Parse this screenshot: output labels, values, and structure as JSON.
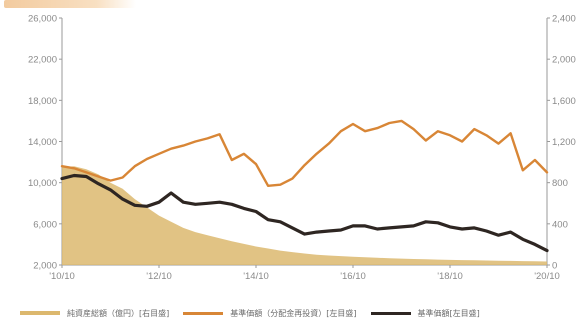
{
  "chart_data": {
    "type": "line",
    "x_ticks": [
      "'10/10",
      "'12/10",
      "'14/10",
      "'16/10",
      "'18/10",
      "'20/10"
    ],
    "y_left": {
      "range": [
        2000,
        26000
      ],
      "ticks": [
        "26,000",
        "22,000",
        "18,000",
        "14,000",
        "10,000",
        "6,000",
        "2,000"
      ],
      "tick_values": [
        26000,
        22000,
        18000,
        14000,
        10000,
        6000,
        2000
      ]
    },
    "y_right": {
      "range": [
        0,
        2400
      ],
      "ticks": [
        "2,400",
        "2,000",
        "1,600",
        "1,200",
        "800",
        "400",
        "0"
      ],
      "tick_values": [
        2400,
        2000,
        1600,
        1200,
        800,
        400,
        0
      ]
    },
    "x": [
      2010.75,
      2011.0,
      2011.25,
      2011.5,
      2011.75,
      2012.0,
      2012.25,
      2012.5,
      2012.75,
      2013.0,
      2013.25,
      2013.5,
      2013.75,
      2014.0,
      2014.25,
      2014.5,
      2014.75,
      2015.0,
      2015.25,
      2015.5,
      2015.75,
      2016.0,
      2016.25,
      2016.5,
      2016.75,
      2017.0,
      2017.25,
      2017.5,
      2017.75,
      2018.0,
      2018.25,
      2018.5,
      2018.75,
      2019.0,
      2019.25,
      2019.5,
      2019.75,
      2020.0,
      2020.25,
      2020.5,
      2020.75
    ],
    "series": [
      {
        "name": "純資産総額（億円）[右目盛]",
        "kind": "area",
        "axis": "right",
        "color": "#dcb86e",
        "values": [
          950,
          960,
          930,
          880,
          800,
          740,
          640,
          560,
          480,
          420,
          360,
          320,
          290,
          260,
          230,
          205,
          180,
          160,
          140,
          125,
          112,
          100,
          92,
          86,
          80,
          75,
          70,
          66,
          62,
          58,
          55,
          52,
          50,
          48,
          46,
          44,
          42,
          40,
          38,
          36,
          34
        ]
      },
      {
        "name": "基準価額（分配金再投資）[左目盛]",
        "kind": "line",
        "axis": "left",
        "color": "#d88636",
        "values": [
          11600,
          11400,
          11000,
          10600,
          10200,
          10500,
          11600,
          12300,
          12800,
          13300,
          13600,
          14000,
          14300,
          14700,
          12200,
          12800,
          11800,
          9700,
          9800,
          10400,
          11700,
          12800,
          13800,
          15000,
          15700,
          15000,
          15300,
          15800,
          16000,
          15200,
          14100,
          15000,
          14600,
          14000,
          15200,
          14600,
          13800,
          14800,
          11200,
          12200,
          11000
        ]
      },
      {
        "name": "基準価額[左目盛]",
        "kind": "line",
        "axis": "left",
        "color": "#2e2622",
        "values": [
          10400,
          10700,
          10600,
          9900,
          9300,
          8400,
          7800,
          7700,
          8100,
          9000,
          8100,
          7900,
          8000,
          8100,
          7900,
          7500,
          7200,
          6400,
          6200,
          5600,
          5000,
          5200,
          5300,
          5400,
          5800,
          5800,
          5500,
          5600,
          5700,
          5800,
          6200,
          6100,
          5700,
          5500,
          5600,
          5300,
          4900,
          5200,
          4500,
          4000,
          3400
        ]
      }
    ],
    "grid": false,
    "legend_position": "bottom"
  }
}
